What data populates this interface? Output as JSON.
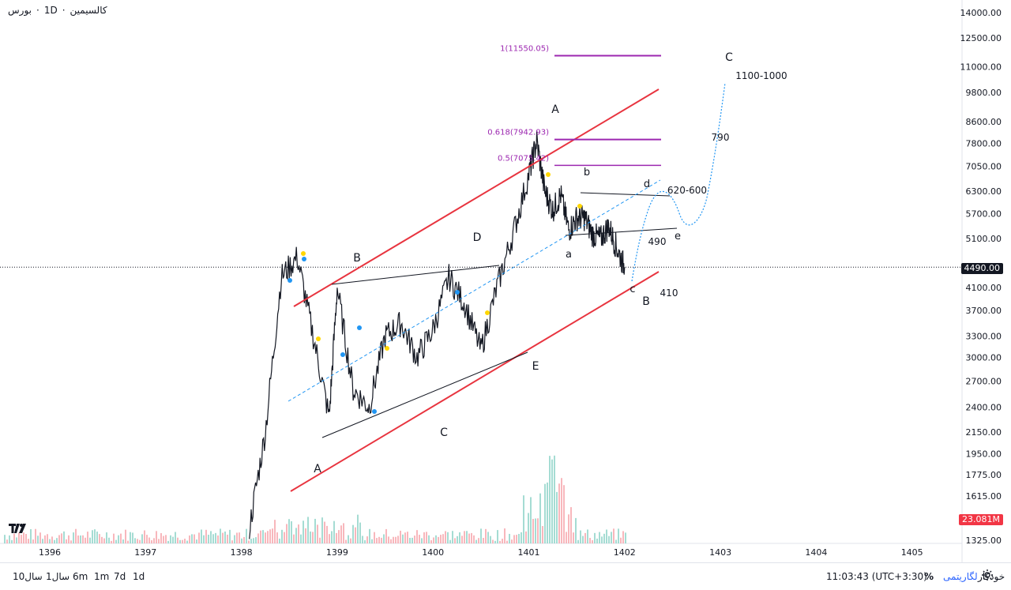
{
  "header": {
    "market": "بورس",
    "sep1": "·",
    "interval": "1D",
    "sep2": "·",
    "symbol": "کالسیمین"
  },
  "price_axis": {
    "labels": [
      "14000.00",
      "12500.00",
      "11000.00",
      "9800.00",
      "8600.00",
      "7800.00",
      "7050.00",
      "6300.00",
      "5700.00",
      "5100.00",
      "4100.00",
      "3700.00",
      "3300.00",
      "3000.00",
      "2700.00",
      "2400.00",
      "2150.00",
      "1950.00",
      "1775.00",
      "1615.00",
      "1325.00"
    ],
    "last_price": "4490.00",
    "volume": "23.081M"
  },
  "time_axis": {
    "labels": [
      "1396",
      "1397",
      "1398",
      "1399",
      "1400",
      "1401",
      "1402",
      "1403",
      "1404",
      "1405"
    ]
  },
  "annotations": {
    "fib_1": "1(11550.05)",
    "fib_0618": "0.618(7942.93)",
    "fib_05": "0.5(7075.42)",
    "A_top": "A",
    "C_top": "C",
    "target_1": "1100-1000",
    "t790": "790",
    "b_small": "b",
    "d_small": "d",
    "t620": "620-600",
    "e_small": "e",
    "t490": "490",
    "a_small": "a",
    "c_small": "c",
    "B_right": "B",
    "t410": "410",
    "B_left": "B",
    "D_mid": "D",
    "E_mid": "E",
    "C_bottom": "C",
    "A_bottom": "A"
  },
  "colors": {
    "channel": "#e8343f",
    "fib": "#9c27b0",
    "projection": "#2196f3",
    "candles": "#131722",
    "volume": "#f6a5ab",
    "volume_up": "#8fd3c8"
  },
  "chart_data": {
    "type": "line",
    "title": "",
    "series": [
      {
        "x": [
          "1398-02",
          "1398-04",
          "1398-06",
          "1398-08",
          "1398-10",
          "1398-12",
          "1399-01",
          "1399-03",
          "1399-05",
          "1399-07",
          "1399-09",
          "1399-11",
          "1400-01",
          "1400-03",
          "1400-05",
          "1400-07",
          "1400-09",
          "1400-11",
          "1401-01",
          "1401-02",
          "1401-03",
          "1401-04",
          "1401-05",
          "1401-06",
          "1401-07",
          "1401-08",
          "1401-09",
          "1401-10",
          "1401-11",
          "1401-12",
          "1402-01"
        ],
        "values": [
          1400,
          2150,
          4300,
          4700,
          3300,
          2300,
          4100,
          2600,
          2400,
          3300,
          3500,
          3000,
          3400,
          4300,
          3800,
          3100,
          4100,
          5200,
          6800,
          7900,
          6300,
          5800,
          6200,
          5300,
          5600,
          5600,
          5200,
          5100,
          5400,
          4900,
          4490
        ]
      }
    ],
    "fibonacci": [
      {
        "ratio": "1",
        "value": 11550.05
      },
      {
        "ratio": "0.618",
        "value": 7942.93
      },
      {
        "ratio": "0.5",
        "value": 7075.42
      }
    ],
    "xlabel": "",
    "ylabel": "",
    "ylim": [
      1325,
      14000
    ],
    "yscale": "log",
    "grid": false,
    "last_price": 4490,
    "volume": "23.081M"
  },
  "bottom_bar": {
    "ranges": [
      "10سال",
      "1سال",
      "6m",
      "1m",
      "7d",
      "1d"
    ],
    "clock": "11:03:43 (UTC+3:30)",
    "percent": "%",
    "log": "لگاریتمی",
    "auto": "خودکار"
  }
}
